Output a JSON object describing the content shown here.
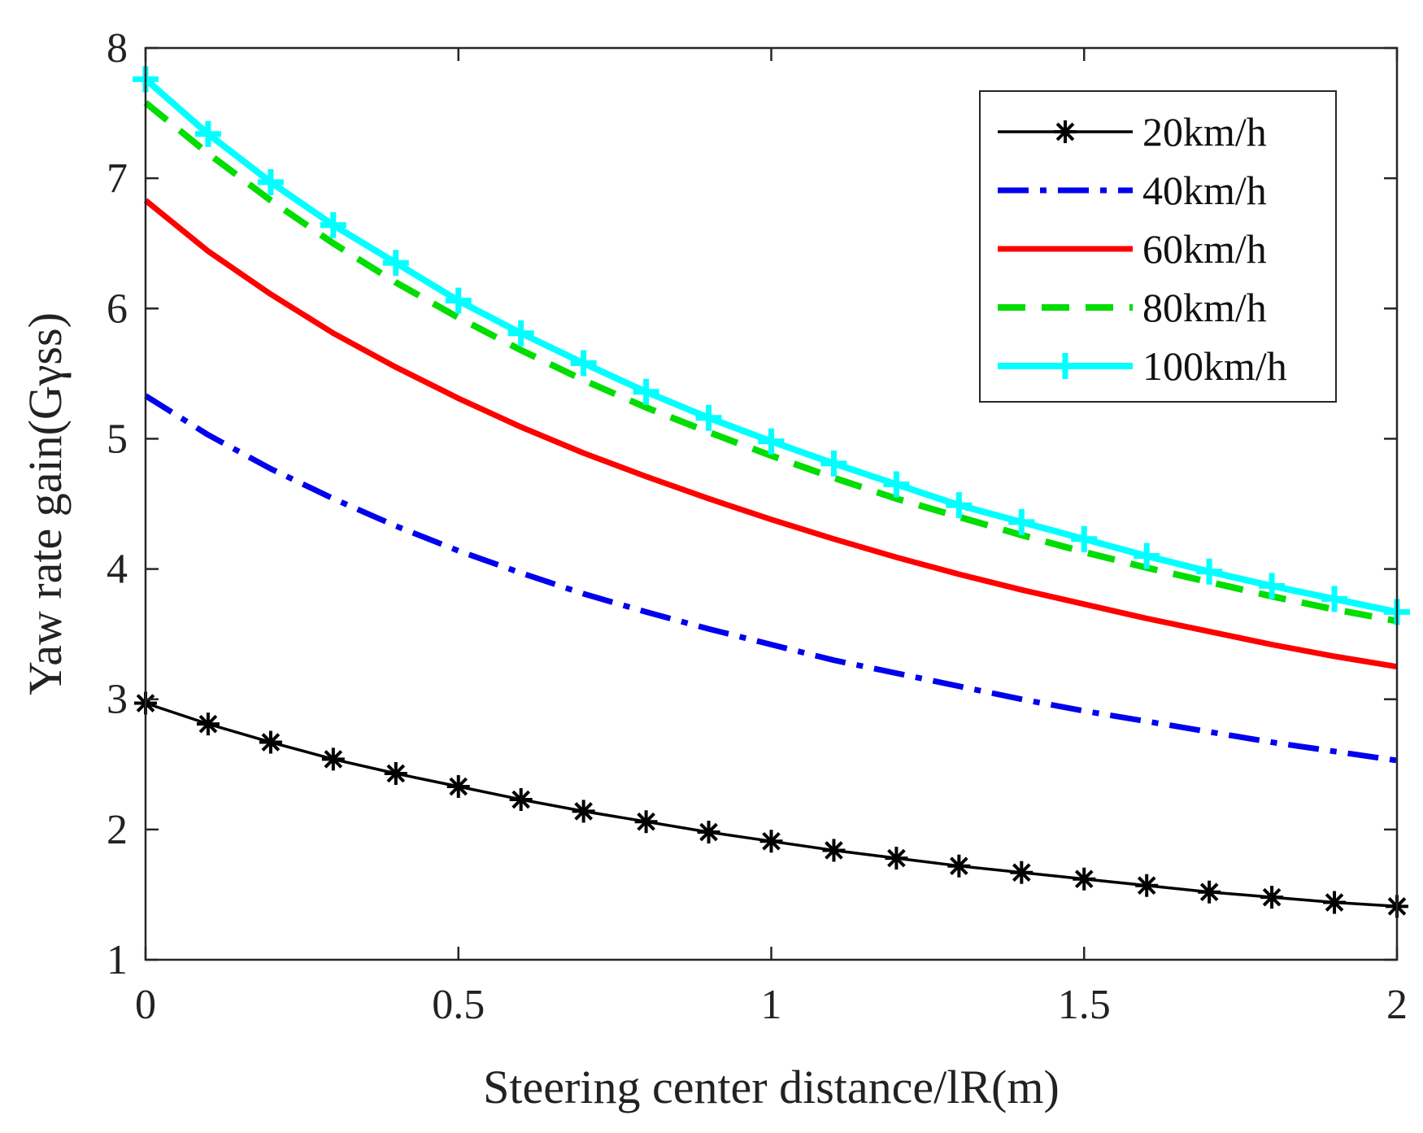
{
  "chart_data": {
    "type": "line",
    "xlabel": "Steering center distance/lR(m)",
    "ylabel": "Yaw rate gain(Gγss)",
    "xlim": [
      0,
      2
    ],
    "ylim": [
      1,
      8
    ],
    "xticks": [
      "0",
      "0.5",
      "1",
      "1.5",
      "2"
    ],
    "yticks": [
      "1",
      "2",
      "3",
      "4",
      "5",
      "6",
      "7",
      "8"
    ],
    "grid": false,
    "legend_position": "top-right",
    "x": [
      0,
      0.1,
      0.2,
      0.3,
      0.4,
      0.5,
      0.6,
      0.7,
      0.8,
      0.9,
      1.0,
      1.1,
      1.2,
      1.3,
      1.4,
      1.5,
      1.6,
      1.7,
      1.8,
      1.9,
      2.0
    ],
    "series": [
      {
        "name": "20km/h",
        "color": "#000000",
        "style": "solid-star",
        "values": [
          2.97,
          2.81,
          2.67,
          2.54,
          2.43,
          2.33,
          2.23,
          2.14,
          2.06,
          1.98,
          1.91,
          1.84,
          1.78,
          1.72,
          1.67,
          1.62,
          1.57,
          1.52,
          1.48,
          1.44,
          1.41
        ]
      },
      {
        "name": "40km/h",
        "color": "#0000ee",
        "style": "dashdot",
        "values": [
          5.33,
          5.03,
          4.77,
          4.54,
          4.33,
          4.14,
          3.97,
          3.81,
          3.67,
          3.54,
          3.42,
          3.3,
          3.2,
          3.1,
          3.0,
          2.91,
          2.83,
          2.75,
          2.67,
          2.6,
          2.53
        ]
      },
      {
        "name": "60km/h",
        "color": "#ff0000",
        "style": "solid",
        "values": [
          6.83,
          6.44,
          6.11,
          5.81,
          5.55,
          5.31,
          5.09,
          4.89,
          4.71,
          4.54,
          4.38,
          4.23,
          4.09,
          3.96,
          3.84,
          3.73,
          3.62,
          3.52,
          3.42,
          3.33,
          3.25
        ]
      },
      {
        "name": "80km/h",
        "color": "#00dd00",
        "style": "dashed",
        "values": [
          7.58,
          7.19,
          6.83,
          6.5,
          6.2,
          5.93,
          5.68,
          5.45,
          5.24,
          5.05,
          4.87,
          4.7,
          4.54,
          4.4,
          4.26,
          4.13,
          4.01,
          3.9,
          3.79,
          3.69,
          3.6
        ]
      },
      {
        "name": "100km/h",
        "color": "#00ffff",
        "style": "solid-plus",
        "values": [
          7.76,
          7.34,
          6.97,
          6.64,
          6.35,
          6.06,
          5.81,
          5.58,
          5.36,
          5.16,
          4.98,
          4.81,
          4.65,
          4.49,
          4.36,
          4.23,
          4.1,
          3.98,
          3.87,
          3.77,
          3.67
        ]
      }
    ]
  }
}
